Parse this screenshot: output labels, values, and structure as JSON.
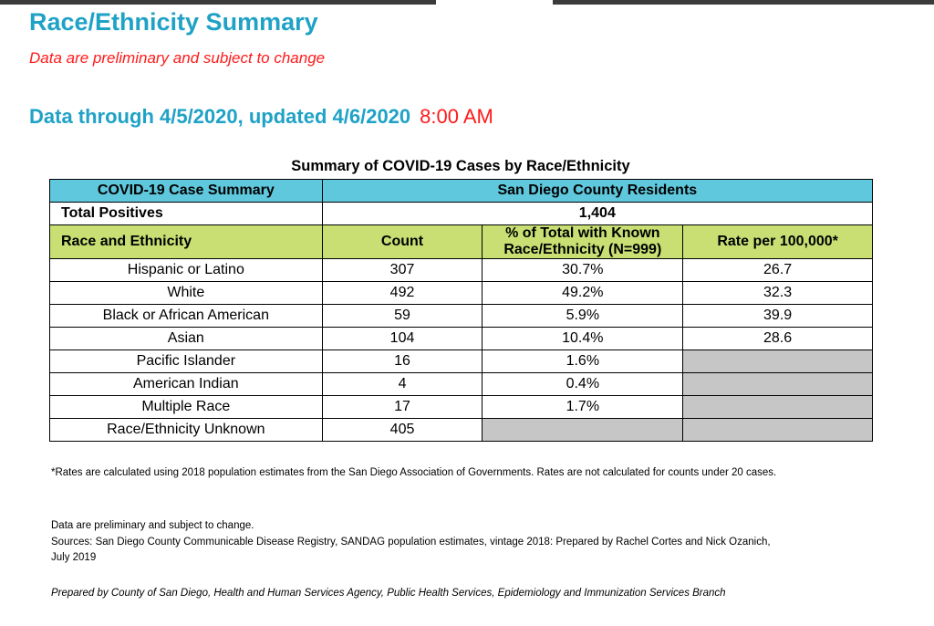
{
  "header": {
    "title": "Race/Ethnicity Summary",
    "subtitle": "Data are preliminary and subject to change",
    "data_through": "Data through 4/5/2020, updated 4/6/2020",
    "update_time": "8:00 AM"
  },
  "table": {
    "title": "Summary of COVID-19 Cases by Race/Ethnicity",
    "case_summary_label": "COVID-19 Case Summary",
    "residents_label": "San Diego County Residents",
    "total_positives_label": "Total Positives",
    "total_positives_value": "1,404",
    "columns": {
      "race": "Race and Ethnicity",
      "count": "Count",
      "pct": "% of Total with Known Race/Ethnicity (N=999)",
      "rate": "Rate per 100,000*"
    },
    "rows": [
      {
        "race": "Hispanic or Latino",
        "count": "307",
        "pct": "30.7%",
        "rate": "26.7"
      },
      {
        "race": "White",
        "count": "492",
        "pct": "49.2%",
        "rate": "32.3"
      },
      {
        "race": "Black or African American",
        "count": "59",
        "pct": "5.9%",
        "rate": "39.9"
      },
      {
        "race": "Asian",
        "count": "104",
        "pct": "10.4%",
        "rate": "28.6"
      },
      {
        "race": "Pacific Islander",
        "count": "16",
        "pct": "1.6%",
        "rate": ""
      },
      {
        "race": "American Indian",
        "count": "4",
        "pct": "0.4%",
        "rate": ""
      },
      {
        "race": "Multiple Race",
        "count": "17",
        "pct": "1.7%",
        "rate": ""
      },
      {
        "race": "Race/Ethnicity Unknown",
        "count": "405",
        "pct": "",
        "rate": ""
      }
    ]
  },
  "notes": {
    "rates_note": "*Rates are calculated using 2018 population estimates from the San Diego Association of Governments. Rates are not calculated for counts under 20 cases.",
    "preliminary": "Data are preliminary and subject to change.",
    "sources": "Sources: San Diego County Communicable Disease Registry, SANDAG population estimates, vintage 2018: Prepared by Rachel Cortes and Nick Ozanich, July 2019",
    "prepared_by": "Prepared by County of San Diego, Health and Human Services Agency, Public Health Services, Epidemiology and Immunization Services Branch"
  },
  "colors": {
    "title_blue": "#1fa2c6",
    "alert_red": "#ff1a1a",
    "header_cyan": "#5fc8dd",
    "header_green": "#c9df74",
    "suppressed_gray": "#c6c6c6"
  }
}
